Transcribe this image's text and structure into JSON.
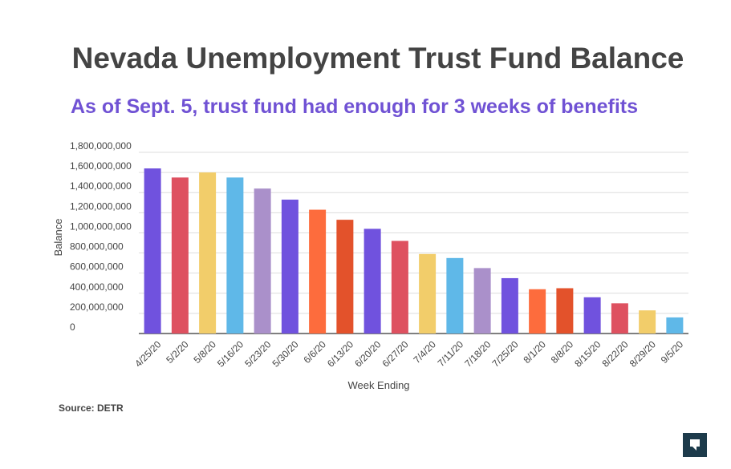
{
  "chart_data": {
    "type": "bar",
    "title": "Nevada Unemployment Trust Fund Balance",
    "subtitle": "As of Sept. 5, trust fund had enough for 3 weeks of benefits",
    "xlabel": "Week Ending",
    "ylabel": "Balance",
    "ylim": [
      0,
      1800000000
    ],
    "yticks": [
      "0",
      "200,000,000",
      "400,000,000",
      "600,000,000",
      "800,000,000",
      "1,000,000,000",
      "1,200,000,000",
      "1,400,000,000",
      "1,600,000,000",
      "1,800,000,000"
    ],
    "grid": true,
    "legend": "none",
    "categories": [
      "4/25/20",
      "5/2/20",
      "5/8/20",
      "5/16/20",
      "5/23/20",
      "5/30/20",
      "6/6/20",
      "6/13/20",
      "6/20/20",
      "6/27/20",
      "7/4/20",
      "7/11/20",
      "7/18/20",
      "7/25/20",
      "8/1/20",
      "8/8/20",
      "8/15/20",
      "8/22/20",
      "8/29/20",
      "9/5/20"
    ],
    "values": [
      1640000000,
      1550000000,
      1600000000,
      1550000000,
      1440000000,
      1330000000,
      1230000000,
      1130000000,
      1040000000,
      920000000,
      790000000,
      750000000,
      650000000,
      550000000,
      440000000,
      450000000,
      360000000,
      300000000,
      230000000,
      160000000
    ],
    "colors": [
      "#7052de",
      "#de5160",
      "#f2cd6a",
      "#5fb8e8",
      "#aa90ca",
      "#7052de",
      "#fd6c3d",
      "#e3522b",
      "#7052de",
      "#de5160",
      "#f2cd6a",
      "#5fb8e8",
      "#aa90ca",
      "#7052de",
      "#fd6c3d",
      "#e3522b",
      "#7052de",
      "#de5160",
      "#f2cd6a",
      "#5fb8e8"
    ]
  },
  "source": "Source: DETR",
  "logo_icon": "nevada-independent-logo-icon"
}
